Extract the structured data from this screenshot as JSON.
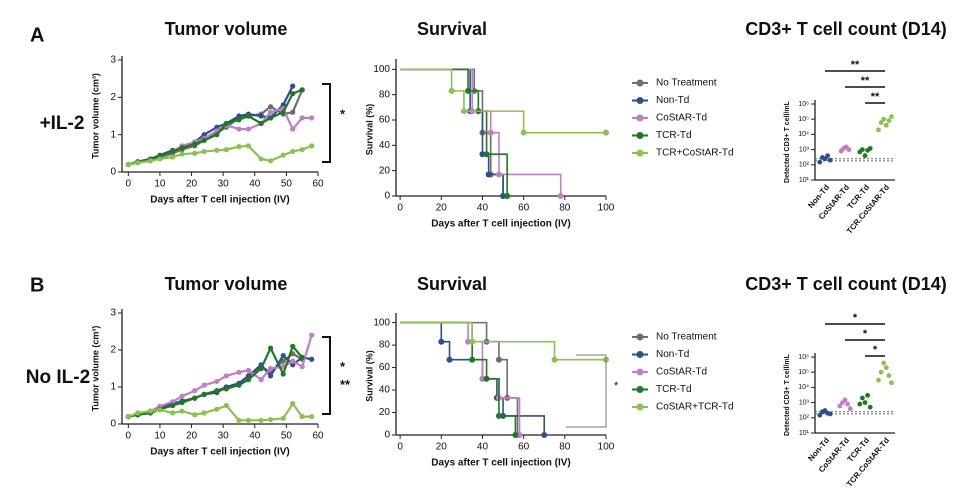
{
  "panels": [
    {
      "letter": "A",
      "condition": "+IL-2"
    },
    {
      "letter": "B",
      "condition": "No IL-2"
    }
  ],
  "chart_data": [
    {
      "type": "line",
      "title": "Tumor volume",
      "x_label": "Days after T cell injection (IV)",
      "y_label": "Tumor volume (cm³)",
      "x": [
        0,
        3,
        7,
        10,
        14,
        17,
        21,
        24,
        28,
        31,
        35,
        38,
        42,
        45,
        49,
        52,
        55,
        58
      ],
      "xlim": [
        -2,
        60
      ],
      "xticks": [
        0,
        10,
        20,
        30,
        40,
        50,
        60
      ],
      "ylim": [
        0,
        3
      ],
      "yticks": [
        0,
        1,
        2,
        3
      ],
      "series": [
        {
          "color": "#6d6d6d",
          "values": [
            0.2,
            0.25,
            0.3,
            0.38,
            0.5,
            0.6,
            0.7,
            0.85,
            1.05,
            1.2,
            1.45,
            1.5,
            1.55,
            1.75,
            1.55,
            1.6,
            2.2,
            null
          ]
        },
        {
          "color": "#2e4f8f",
          "values": [
            0.2,
            0.28,
            0.35,
            0.45,
            0.58,
            0.65,
            0.8,
            1.0,
            1.2,
            1.3,
            1.5,
            1.55,
            1.5,
            1.45,
            1.8,
            2.3,
            null,
            null
          ]
        },
        {
          "color": "#c07ec4",
          "values": [
            0.2,
            0.25,
            0.32,
            0.4,
            0.55,
            0.7,
            0.8,
            0.9,
            1.1,
            1.25,
            1.15,
            1.15,
            1.3,
            1.6,
            1.7,
            1.15,
            1.45,
            1.45
          ]
        },
        {
          "color": "#1e7a1e",
          "values": [
            0.2,
            0.27,
            0.33,
            0.42,
            0.55,
            0.65,
            0.75,
            0.85,
            1.0,
            1.3,
            1.4,
            1.5,
            1.3,
            1.45,
            1.6,
            2.1,
            2.2,
            null
          ]
        },
        {
          "color": "#8cc152",
          "values": [
            0.2,
            0.25,
            0.3,
            0.35,
            0.4,
            0.48,
            0.5,
            0.55,
            0.58,
            0.6,
            0.68,
            0.7,
            0.35,
            0.3,
            0.45,
            0.55,
            0.6,
            0.7
          ]
        }
      ],
      "annotations": [
        "*"
      ]
    },
    {
      "type": "survival",
      "title": "Survival",
      "x_label": "Days after T cell injection (IV)",
      "y_label": "Survival (%)",
      "xlim": [
        -2,
        100
      ],
      "xticks": [
        0,
        20,
        40,
        60,
        80,
        100
      ],
      "ylim": [
        0,
        105
      ],
      "yticks": [
        0,
        20,
        40,
        60,
        80,
        100
      ],
      "series": [
        {
          "name": "No Treatment",
          "color": "#6d6d6d",
          "x": [
            0,
            36,
            40,
            44,
            50
          ],
          "values": [
            100,
            83,
            50,
            17,
            0
          ]
        },
        {
          "name": "Non-Td",
          "color": "#2e4f8f",
          "x": [
            0,
            34,
            40,
            43,
            50
          ],
          "values": [
            100,
            67,
            33,
            17,
            0
          ]
        },
        {
          "name": "CoStAR-Td",
          "color": "#c07ec4",
          "x": [
            0,
            35,
            44,
            48,
            78
          ],
          "values": [
            100,
            67,
            50,
            17,
            0
          ]
        },
        {
          "name": "TCR-Td",
          "color": "#1e7a1e",
          "x": [
            0,
            33,
            38,
            42,
            52
          ],
          "values": [
            100,
            83,
            67,
            33,
            0
          ]
        },
        {
          "name": "TCR+CoStAR-Td",
          "color": "#8cc152",
          "x": [
            0,
            25,
            31,
            60,
            100
          ],
          "values": [
            100,
            83,
            67,
            50,
            50
          ]
        }
      ],
      "annotations": []
    },
    {
      "type": "strip",
      "title": "CD3+ T cell count (D14)",
      "y_label": "Detected CD3+ T cell/mL",
      "log_scale": true,
      "categories": [
        "Non-Td",
        "CoStAR-Td",
        "TCR-Td",
        "TCR.CoStAR-Td"
      ],
      "colors": [
        "#2e4f8f",
        "#c07ec4",
        "#1e7a1e",
        "#8cc152"
      ],
      "ylim": [
        10,
        1000000
      ],
      "yticks": [
        {
          "value": 10,
          "label": "10¹"
        },
        {
          "value": 100,
          "label": "10²"
        },
        {
          "value": 1000,
          "label": "10³"
        },
        {
          "value": 10000,
          "label": "10⁴"
        },
        {
          "value": 100000,
          "label": "10⁵"
        },
        {
          "value": 1000000,
          "label": "10⁶"
        }
      ],
      "values": [
        [
          150,
          300,
          250,
          400,
          200
        ],
        [
          800,
          1200,
          1500,
          1000
        ],
        [
          700,
          1000,
          400,
          900,
          1200
        ],
        [
          20000,
          60000,
          100000,
          40000,
          80000,
          150000
        ]
      ],
      "significance": [
        "**",
        "**",
        "**"
      ]
    },
    {
      "type": "line",
      "title": "Tumor volume",
      "x_label": "Days after T cell injection (IV)",
      "y_label": "Tumor volume (cm³)",
      "x": [
        0,
        3,
        7,
        10,
        14,
        17,
        21,
        24,
        28,
        31,
        35,
        38,
        42,
        45,
        49,
        52,
        55,
        58
      ],
      "xlim": [
        -2,
        60
      ],
      "xticks": [
        0,
        10,
        20,
        30,
        40,
        50,
        60
      ],
      "ylim": [
        0,
        3
      ],
      "yticks": [
        0,
        1,
        2,
        3
      ],
      "series": [
        {
          "color": "#6d6d6d",
          "values": [
            0.2,
            0.25,
            0.3,
            0.4,
            0.5,
            0.6,
            0.7,
            0.8,
            0.9,
            1.0,
            1.1,
            1.3,
            1.55,
            1.4,
            1.7,
            1.9,
            1.75,
            null
          ]
        },
        {
          "color": "#2e4f8f",
          "values": [
            0.2,
            0.27,
            0.35,
            0.45,
            0.55,
            0.62,
            0.7,
            0.8,
            0.85,
            1.0,
            1.1,
            1.3,
            1.6,
            1.3,
            1.85,
            1.6,
            1.8,
            1.75
          ]
        },
        {
          "color": "#c07ec4",
          "values": [
            0.2,
            0.28,
            0.35,
            0.48,
            0.6,
            0.75,
            0.9,
            1.05,
            1.15,
            1.3,
            1.4,
            1.45,
            1.2,
            1.5,
            1.55,
            1.7,
            1.55,
            2.4
          ]
        },
        {
          "color": "#1e7a1e",
          "values": [
            0.2,
            0.25,
            0.3,
            0.4,
            0.5,
            0.58,
            0.7,
            0.8,
            0.9,
            0.95,
            1.05,
            1.2,
            1.5,
            2.05,
            1.35,
            2.1,
            1.8,
            null
          ]
        },
        {
          "color": "#8cc152",
          "values": [
            0.2,
            0.3,
            0.35,
            0.38,
            0.3,
            0.35,
            0.25,
            0.3,
            0.4,
            0.5,
            0.1,
            0.1,
            0.1,
            0.12,
            0.15,
            0.55,
            0.2,
            0.2
          ]
        }
      ],
      "annotations": [
        "*",
        "**"
      ]
    },
    {
      "type": "survival",
      "title": "Survival",
      "x_label": "Days after T cell injection (IV)",
      "y_label": "Survival (%)",
      "xlim": [
        -2,
        100
      ],
      "xticks": [
        0,
        20,
        40,
        60,
        80,
        100
      ],
      "ylim": [
        0,
        105
      ],
      "yticks": [
        0,
        20,
        40,
        60,
        80,
        100
      ],
      "series": [
        {
          "name": "No Treatment",
          "color": "#6d6d6d",
          "x": [
            0,
            42,
            48,
            52,
            57
          ],
          "values": [
            100,
            83,
            67,
            33,
            0
          ]
        },
        {
          "name": "Non-Td",
          "color": "#2e4f8f",
          "x": [
            0,
            20,
            24,
            40,
            47,
            50,
            70
          ],
          "values": [
            100,
            83,
            67,
            50,
            33,
            17,
            0
          ]
        },
        {
          "name": "CoStAR-Td",
          "color": "#c07ec4",
          "x": [
            0,
            33,
            40,
            48,
            58
          ],
          "values": [
            100,
            83,
            50,
            33,
            0
          ]
        },
        {
          "name": "TCR-Td",
          "color": "#1e7a1e",
          "x": [
            0,
            35,
            42,
            48,
            56
          ],
          "values": [
            100,
            67,
            50,
            17,
            0
          ]
        },
        {
          "name": "CoStAR+TCR-Td",
          "color": "#8cc152",
          "x": [
            0,
            35,
            75,
            100
          ],
          "values": [
            100,
            83,
            67,
            67
          ]
        }
      ],
      "annotations": [
        "*"
      ]
    },
    {
      "type": "strip",
      "title": "CD3+ T cell count (D14)",
      "y_label": "Detected CD3+ T cell/mL",
      "log_scale": true,
      "categories": [
        "Non-Td",
        "CoStAR-Td",
        "TCR-Td",
        "TCR.CoStAR-Td"
      ],
      "colors": [
        "#2e4f8f",
        "#c07ec4",
        "#1e7a1e",
        "#8cc152"
      ],
      "ylim": [
        10,
        1000000
      ],
      "yticks": [
        {
          "value": 10,
          "label": "10¹"
        },
        {
          "value": 100,
          "label": "10²"
        },
        {
          "value": 1000,
          "label": "10³"
        },
        {
          "value": 10000,
          "label": "10⁴"
        },
        {
          "value": 100000,
          "label": "10⁵"
        },
        {
          "value": 1000000,
          "label": "10⁶"
        }
      ],
      "values": [
        [
          150,
          250,
          300,
          200,
          180
        ],
        [
          600,
          1000,
          1500,
          800,
          400
        ],
        [
          800,
          2000,
          1000,
          3000,
          500
        ],
        [
          30000,
          100000,
          400000,
          200000,
          60000,
          20000
        ]
      ],
      "significance": [
        "*",
        "*",
        "*"
      ]
    }
  ]
}
